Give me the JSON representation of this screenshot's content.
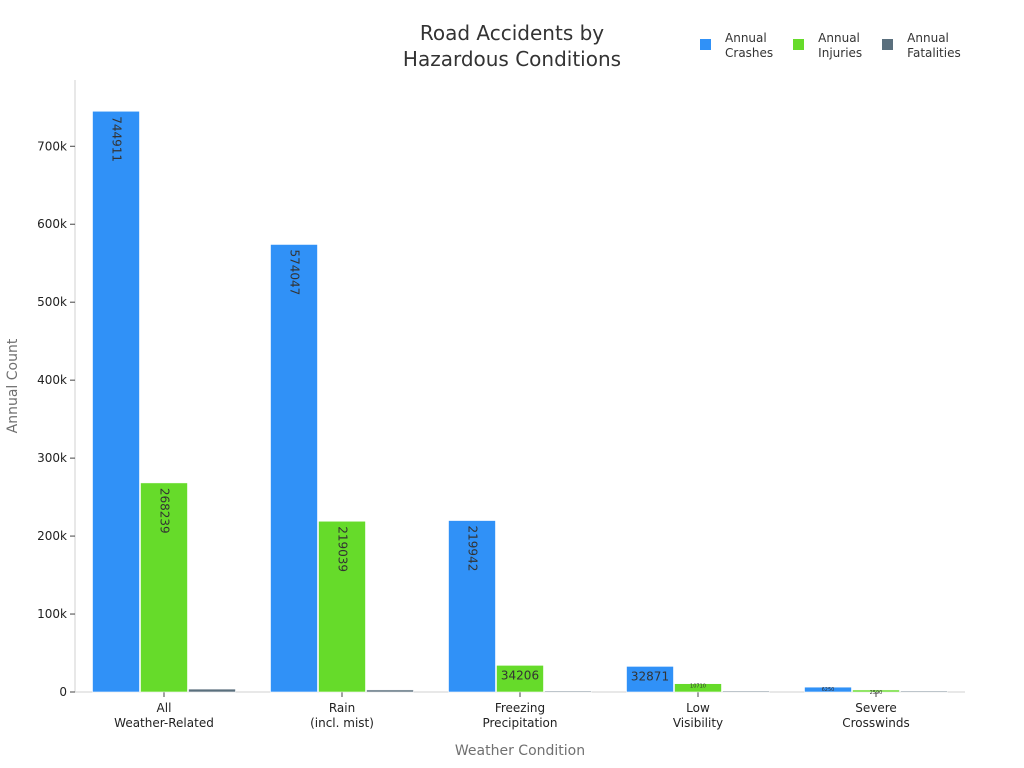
{
  "chart_data": {
    "type": "bar",
    "title": "Road Accidents by\nHazardous Conditions",
    "xlabel": "Weather Condition",
    "ylabel": "Annual Count",
    "ylim": [
      0,
      785000
    ],
    "yticks": [
      0,
      100000,
      200000,
      300000,
      400000,
      500000,
      600000,
      700000
    ],
    "ytick_labels": [
      "0",
      "100k",
      "200k",
      "300k",
      "400k",
      "500k",
      "600k",
      "700k"
    ],
    "categories": [
      "All\nWeather-Related",
      "Rain\n(incl. mist)",
      "Freezing\nPrecipitation",
      "Low\nVisibility",
      "Severe\nCrosswinds"
    ],
    "series": [
      {
        "name": "Annual\nCrashes",
        "color": "#3091f7",
        "values": [
          744911,
          574047,
          219942,
          32871,
          6250
        ],
        "labels": [
          "744911",
          "574047",
          "219942",
          "32871",
          "6250"
        ]
      },
      {
        "name": "Annual\nInjuries",
        "color": "#66db2a",
        "values": [
          268239,
          219039,
          34206,
          10710,
          2590
        ],
        "labels": [
          "268239",
          "219039",
          "34206",
          "10710",
          "2590"
        ]
      },
      {
        "name": "Annual\nFatalities",
        "color": "#5a6f7d",
        "values": [
          3760,
          2640,
          720,
          480,
          160
        ],
        "labels": [
          "",
          "",
          "",
          "",
          ""
        ]
      }
    ],
    "legend_position": "top-right",
    "grid": false
  }
}
